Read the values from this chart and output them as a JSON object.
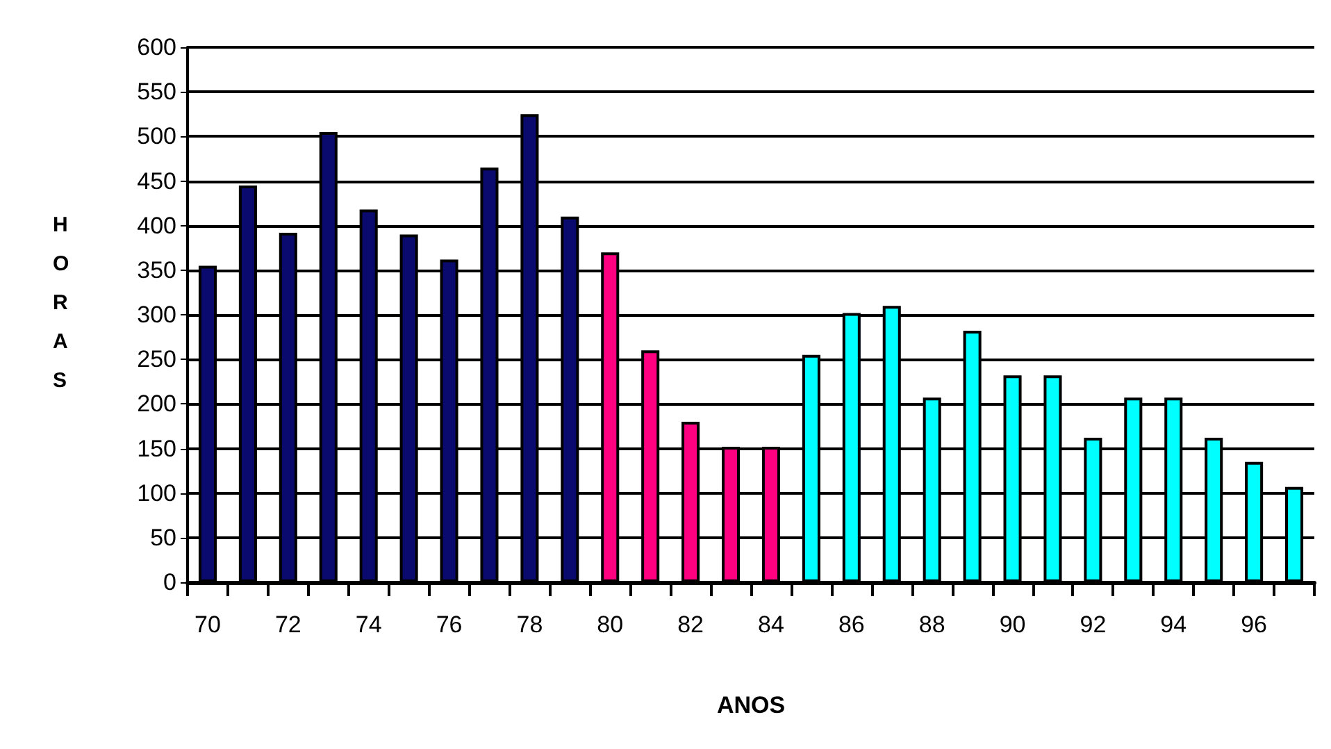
{
  "chart_data": {
    "type": "bar",
    "xlabel": "ANOS",
    "ylabel": "HORAS",
    "categories": [
      "70",
      null,
      "72",
      null,
      "74",
      null,
      "76",
      null,
      "78",
      null,
      "80",
      null,
      "82",
      null,
      "84",
      null,
      "86",
      null,
      "88",
      null,
      "90",
      null,
      "92",
      null,
      "94",
      null,
      "96",
      null
    ],
    "values": [
      355,
      445,
      392,
      505,
      418,
      390,
      362,
      465,
      525,
      410,
      370,
      260,
      180,
      152,
      152,
      255,
      302,
      310,
      207,
      282,
      232,
      232,
      162,
      207,
      207,
      162,
      135,
      107
    ],
    "colors": [
      "#0a0a6e",
      "#0a0a6e",
      "#0a0a6e",
      "#0a0a6e",
      "#0a0a6e",
      "#0a0a6e",
      "#0a0a6e",
      "#0a0a6e",
      "#0a0a6e",
      "#0a0a6e",
      "#ff0080",
      "#ff0080",
      "#ff0080",
      "#ff0080",
      "#ff0080",
      "#00ffff",
      "#00ffff",
      "#00ffff",
      "#00ffff",
      "#00ffff",
      "#00ffff",
      "#00ffff",
      "#00ffff",
      "#00ffff",
      "#00ffff",
      "#00ffff",
      "#00ffff",
      "#00ffff"
    ],
    "ylim": [
      0,
      600
    ],
    "yticks": [
      0,
      50,
      100,
      150,
      200,
      250,
      300,
      350,
      400,
      450,
      500,
      550,
      600
    ],
    "grid": "y"
  }
}
